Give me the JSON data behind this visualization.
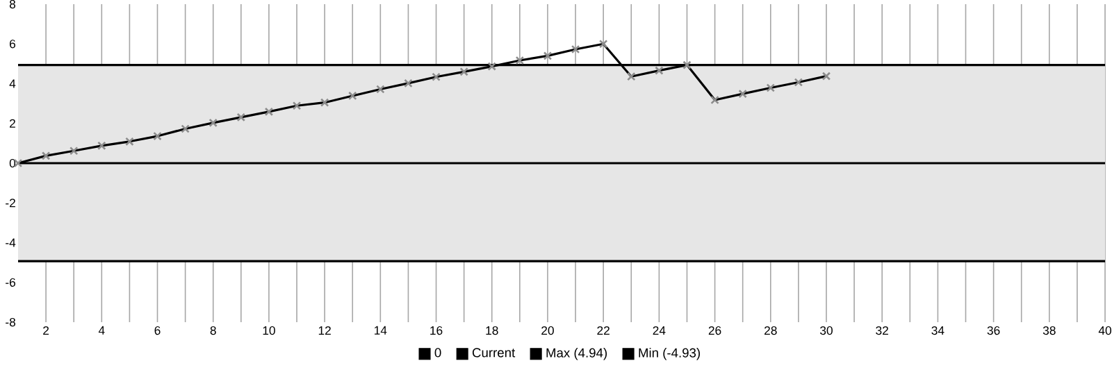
{
  "chart_data": {
    "type": "line",
    "x": [
      1,
      2,
      3,
      4,
      5,
      6,
      7,
      8,
      9,
      10,
      11,
      12,
      13,
      14,
      15,
      16,
      17,
      18,
      19,
      20,
      21,
      22,
      23,
      24,
      25,
      26,
      27,
      28,
      29,
      30
    ],
    "series": [
      {
        "name": "Current",
        "color": "#000000",
        "values": [
          0,
          0.37,
          0.62,
          0.88,
          1.09,
          1.36,
          1.73,
          2.03,
          2.31,
          2.59,
          2.89,
          3.05,
          3.39,
          3.72,
          4.02,
          4.34,
          4.6,
          4.87,
          5.17,
          5.4,
          5.73,
          6.0,
          4.36,
          4.66,
          4.94,
          3.18,
          3.49,
          3.79,
          4.07,
          4.38
        ]
      }
    ],
    "xlim": [
      1,
      40
    ],
    "xticks": [
      {
        "value": 2,
        "label": "2"
      },
      {
        "value": 3,
        "label": null
      },
      {
        "value": 4,
        "label": "4"
      },
      {
        "value": 5,
        "label": null
      },
      {
        "value": 6,
        "label": "6"
      },
      {
        "value": 7,
        "label": null
      },
      {
        "value": 8,
        "label": "8"
      },
      {
        "value": 9,
        "label": null
      },
      {
        "value": 10,
        "label": "10"
      },
      {
        "value": 11,
        "label": null
      },
      {
        "value": 12,
        "label": "12"
      },
      {
        "value": 13,
        "label": null
      },
      {
        "value": 14,
        "label": "14"
      },
      {
        "value": 15,
        "label": null
      },
      {
        "value": 16,
        "label": "16"
      },
      {
        "value": 17,
        "label": null
      },
      {
        "value": 18,
        "label": "18"
      },
      {
        "value": 19,
        "label": null
      },
      {
        "value": 20,
        "label": "20"
      },
      {
        "value": 21,
        "label": null
      },
      {
        "value": 22,
        "label": "22"
      },
      {
        "value": 23,
        "label": null
      },
      {
        "value": 24,
        "label": "24"
      },
      {
        "value": 25,
        "label": null
      },
      {
        "value": 26,
        "label": "26"
      },
      {
        "value": 27,
        "label": null
      },
      {
        "value": 28,
        "label": "28"
      },
      {
        "value": 29,
        "label": null
      },
      {
        "value": 30,
        "label": "30"
      },
      {
        "value": 31,
        "label": null
      },
      {
        "value": 32,
        "label": "32"
      },
      {
        "value": 33,
        "label": null
      },
      {
        "value": 34,
        "label": "34"
      },
      {
        "value": 35,
        "label": null
      },
      {
        "value": 36,
        "label": "36"
      },
      {
        "value": 37,
        "label": null
      },
      {
        "value": 38,
        "label": "38"
      },
      {
        "value": 39,
        "label": null
      },
      {
        "value": 40,
        "label": "40"
      }
    ],
    "ylim": [
      -8,
      8
    ],
    "yticks": [
      -8,
      -6,
      -4,
      -2,
      0,
      2,
      4,
      6,
      8
    ],
    "ref_lines": [
      {
        "axis": "y",
        "value": 0,
        "label": "0",
        "color": "#000000"
      },
      {
        "axis": "y",
        "value": 4.94,
        "label": "Max (4.94)",
        "color": "#000000"
      },
      {
        "axis": "y",
        "value": -4.93,
        "label": "Min (-4.93)",
        "color": "#000000"
      }
    ],
    "bands": [
      {
        "axis": "y",
        "from": -4.93,
        "to": 4.94,
        "color": "#e6e6e6"
      }
    ],
    "grid": "x",
    "legend": "bottom",
    "marker": "cross",
    "line_style": "solid"
  }
}
